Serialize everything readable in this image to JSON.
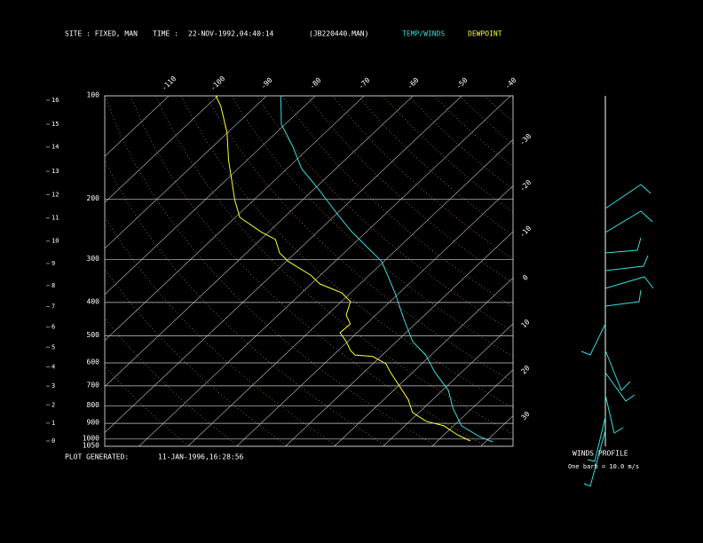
{
  "header": {
    "site": "SITE :  FIXED, MAN",
    "time_label": "TIME :",
    "time": "22-NOV-1992,04:40:14",
    "file": "(JB220440.MAN)"
  },
  "chart_data": {
    "type": "skewt",
    "log_scale": true,
    "plim": [
      100,
      1050
    ],
    "pticks": [
      100,
      200,
      300,
      400,
      500,
      600,
      700,
      800,
      900,
      1000,
      1050
    ],
    "tticks": [
      -110,
      -100,
      -90,
      -80,
      -70,
      -60,
      -50,
      -40,
      -30,
      -20,
      -10,
      0,
      10,
      20,
      30
    ],
    "height_ticks": [
      {
        "value": 103,
        "label": "16"
      },
      {
        "value": 121,
        "label": "15"
      },
      {
        "value": 141,
        "label": "14"
      },
      {
        "value": 166,
        "label": "13"
      },
      {
        "value": 194,
        "label": "12"
      },
      {
        "value": 227,
        "label": "11"
      },
      {
        "value": 265,
        "label": "10"
      },
      {
        "value": 308,
        "label": "9"
      },
      {
        "value": 357,
        "label": "8"
      },
      {
        "value": 411,
        "label": "7"
      },
      {
        "value": 472,
        "label": "6"
      },
      {
        "value": 540,
        "label": "5"
      },
      {
        "value": 616,
        "label": "4"
      },
      {
        "value": 701,
        "label": "3"
      },
      {
        "value": 795,
        "label": "2"
      },
      {
        "value": 899,
        "label": "1"
      },
      {
        "value": 1013,
        "label": "0"
      }
    ],
    "series": [
      {
        "name": "TEMP/WINDS",
        "color": "#33dddd",
        "pressure": [
          100,
          121,
          140,
          163,
          189,
          213,
          247,
          270,
          304,
          375,
          448,
          520,
          569,
          640,
          721,
          813,
          915,
          984,
          1019
        ],
        "values": [
          -87.1,
          -80.8,
          -73.8,
          -67,
          -58.5,
          -51.9,
          -43.5,
          -37.9,
          -30.4,
          -20.9,
          -13.3,
          -6.7,
          -1.1,
          4.6,
          11.2,
          16,
          21.6,
          27.6,
          31.5
        ]
      },
      {
        "name": "DEWPOINT",
        "color": "#ffff33",
        "pressure": [
          100,
          107,
          128,
          154,
          201,
          226,
          250,
          262,
          287,
          304,
          333,
          353,
          375,
          398,
          435,
          462,
          490,
          520,
          552,
          569,
          575,
          604,
          640,
          700,
          766,
          837,
          888,
          915,
          972,
          1013
        ],
        "values": [
          -100.4,
          -97.2,
          -90.1,
          -83.8,
          -73.9,
          -69.1,
          -61.3,
          -57,
          -53.2,
          -49.5,
          -42,
          -38.3,
          -31.8,
          -28.1,
          -26.1,
          -23.3,
          -23.5,
          -20.3,
          -17.5,
          -15.6,
          -11.6,
          -7.3,
          -4.5,
          0.2,
          4.9,
          8.7,
          13.4,
          18,
          22.7,
          26.7
        ]
      }
    ]
  },
  "footer": {
    "label": "PLOT GENERATED:",
    "time": "11-JAN-1996,16:28:56"
  },
  "winds": {
    "title": "WINDS PROFILE",
    "note": "One barb = 10.0 m/s"
  }
}
